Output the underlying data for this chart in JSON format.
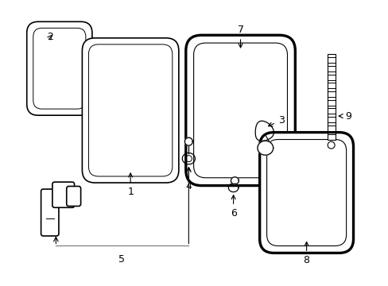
{
  "bg_color": "#ffffff",
  "line_color": "#000000",
  "label_color": "#000000",
  "label_fs": 9,
  "lw": 1.2
}
